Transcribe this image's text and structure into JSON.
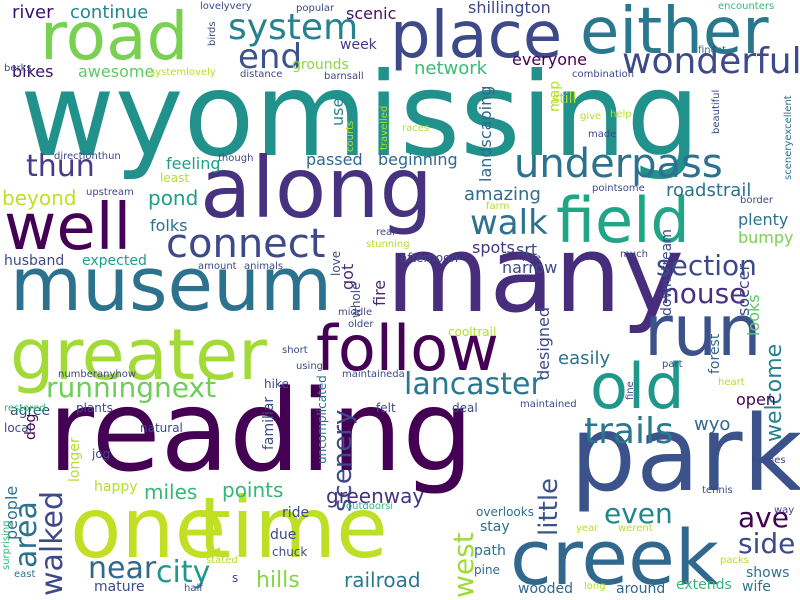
{
  "colors": {
    "background": "#ffffff",
    "palette": [
      "#440154",
      "#482878",
      "#3e4989",
      "#31688e",
      "#26828e",
      "#1f9e89",
      "#35b779",
      "#6ece58",
      "#b5de2b",
      "#fde725"
    ]
  },
  "words": [
    {
      "text": "wyomissing",
      "color": "#21918c"
    },
    {
      "text": "reading",
      "color": "#440154"
    },
    {
      "text": "park",
      "color": "#3b528b"
    },
    {
      "text": "many",
      "color": "#472d7b"
    },
    {
      "text": "museum",
      "color": "#2c728e"
    },
    {
      "text": "along",
      "color": "#46327e"
    },
    {
      "text": "time",
      "color": "#bddf26"
    },
    {
      "text": "one",
      "color": "#c2df23"
    },
    {
      "text": "creek",
      "color": "#31688e"
    },
    {
      "text": "greater",
      "color": "#a2da37"
    },
    {
      "text": "follow",
      "color": "#440154"
    },
    {
      "text": "road",
      "color": "#7ad151"
    },
    {
      "text": "place",
      "color": "#3e4989"
    },
    {
      "text": "either",
      "color": "#2a788e"
    },
    {
      "text": "well",
      "color": "#440154"
    },
    {
      "text": "field",
      "color": "#21a685"
    },
    {
      "text": "run",
      "color": "#3b528b"
    },
    {
      "text": "old",
      "color": "#1f988b"
    },
    {
      "text": "connect",
      "color": "#3e4989"
    },
    {
      "text": "underpass",
      "color": "#2c728e"
    },
    {
      "text": "wonderful",
      "color": "#3e4989"
    },
    {
      "text": "system",
      "color": "#26828e"
    },
    {
      "text": "section",
      "color": "#3e4989"
    },
    {
      "text": "house",
      "color": "#46337f"
    },
    {
      "text": "lancaster",
      "color": "#2a788e"
    },
    {
      "text": "runningnext",
      "color": "#6ece58"
    },
    {
      "text": "trails",
      "color": "#2a788e"
    },
    {
      "text": "walk",
      "color": "#2c728e"
    },
    {
      "text": "end",
      "color": "#3b528b"
    },
    {
      "text": "thun",
      "color": "#433e85"
    },
    {
      "text": "near",
      "color": "#31688e"
    },
    {
      "text": "city",
      "color": "#1f988b"
    },
    {
      "text": "ave",
      "color": "#440154"
    },
    {
      "text": "even",
      "color": "#25858e"
    },
    {
      "text": "side",
      "color": "#3e4989"
    },
    {
      "text": "walked",
      "color": "#3e4989"
    },
    {
      "text": "area",
      "color": "#2c728e"
    },
    {
      "text": "west",
      "color": "#a0da39"
    },
    {
      "text": "little",
      "color": "#3b528b"
    },
    {
      "text": "welcome",
      "color": "#26828e"
    },
    {
      "text": "scenery",
      "color": "#3e4989"
    },
    {
      "text": "greenway",
      "color": "#46327e"
    },
    {
      "text": "points",
      "color": "#35b779"
    },
    {
      "text": "miles",
      "color": "#35b779"
    },
    {
      "text": "hills",
      "color": "#86d549"
    },
    {
      "text": "railroad",
      "color": "#2a788e"
    },
    {
      "text": "network",
      "color": "#3aba76"
    },
    {
      "text": "river",
      "color": "#3b0f70"
    },
    {
      "text": "continue",
      "color": "#25858e"
    },
    {
      "text": "shillington",
      "color": "#3e4989"
    },
    {
      "text": "scenic",
      "color": "#471063"
    },
    {
      "text": "grounds",
      "color": "#8bd646"
    },
    {
      "text": "week",
      "color": "#443983"
    },
    {
      "text": "everyone",
      "color": "#440154"
    },
    {
      "text": "pond",
      "color": "#1f9e89"
    },
    {
      "text": "beyond",
      "color": "#c2df23"
    },
    {
      "text": "amazing",
      "color": "#2e6e8e"
    },
    {
      "text": "roadstrail",
      "color": "#2c728e"
    },
    {
      "text": "plenty",
      "color": "#2c728e"
    },
    {
      "text": "bumpy",
      "color": "#7ad151"
    },
    {
      "text": "easily",
      "color": "#2c728e"
    },
    {
      "text": "wyo",
      "color": "#31688e"
    },
    {
      "text": "open",
      "color": "#440154"
    },
    {
      "text": "spots",
      "color": "#443983"
    },
    {
      "text": "srt",
      "color": "#3e4989"
    },
    {
      "text": "narrow",
      "color": "#3e4989"
    },
    {
      "text": "passed",
      "color": "#31688e"
    },
    {
      "text": "beginning",
      "color": "#31688e"
    },
    {
      "text": "awesome",
      "color": "#5ec962"
    },
    {
      "text": "bikes",
      "color": "#3b0f70"
    },
    {
      "text": "expected",
      "color": "#1f9e89"
    },
    {
      "text": "husband",
      "color": "#3e4989"
    },
    {
      "text": "feeling",
      "color": "#1f9e89"
    },
    {
      "text": "least",
      "color": "#b5de2b"
    },
    {
      "text": "folks",
      "color": "#2c728e"
    },
    {
      "text": "still",
      "color": "#b5de2b"
    },
    {
      "text": "map",
      "color": "#b5de2b"
    },
    {
      "text": "landscaping",
      "color": "#31688e"
    },
    {
      "text": "use",
      "color": "#25858e"
    },
    {
      "text": "fire",
      "color": "#482878"
    },
    {
      "text": "got",
      "color": "#482878"
    },
    {
      "text": "love",
      "color": "#3e4989"
    },
    {
      "text": "whole",
      "color": "#3e4989"
    },
    {
      "text": "designed",
      "color": "#3e4989"
    },
    {
      "text": "soccer",
      "color": "#3e4989"
    },
    {
      "text": "looks",
      "color": "#5ec962"
    },
    {
      "text": "downstream",
      "color": "#3e4989"
    },
    {
      "text": "forest",
      "color": "#31688e"
    },
    {
      "text": "agree",
      "color": "#3e4989"
    },
    {
      "text": "local",
      "color": "#3e4989"
    },
    {
      "text": "people",
      "color": "#2c728e"
    },
    {
      "text": "dog",
      "color": "#440154"
    },
    {
      "text": "longer",
      "color": "#b5de2b"
    },
    {
      "text": "happy",
      "color": "#b5de2b"
    },
    {
      "text": "familiar",
      "color": "#3e4989"
    },
    {
      "text": "ride",
      "color": "#3e4989"
    },
    {
      "text": "due",
      "color": "#3e4989"
    },
    {
      "text": "chuck",
      "color": "#3e4989"
    },
    {
      "text": "hike",
      "color": "#3e4989"
    },
    {
      "text": "natural",
      "color": "#3e4989"
    },
    {
      "text": "plants",
      "color": "#3e4989"
    },
    {
      "text": "jog",
      "color": "#3e4989"
    },
    {
      "text": "uncomplicated",
      "color": "#2c728e"
    },
    {
      "text": "felt",
      "color": "#3e4989"
    },
    {
      "text": "deal",
      "color": "#3e4989"
    },
    {
      "text": "maintained",
      "color": "#3e4989"
    },
    {
      "text": "path",
      "color": "#2c728e"
    },
    {
      "text": "stay",
      "color": "#2c728e"
    },
    {
      "text": "overlooks",
      "color": "#2c728e"
    },
    {
      "text": "pine",
      "color": "#31688e"
    },
    {
      "text": "wooded",
      "color": "#31688e"
    },
    {
      "text": "around",
      "color": "#31688e"
    },
    {
      "text": "extends",
      "color": "#35b779"
    },
    {
      "text": "shows",
      "color": "#2c728e"
    },
    {
      "text": "wife",
      "color": "#2c728e"
    },
    {
      "text": "mature",
      "color": "#3e4989"
    },
    {
      "text": "east",
      "color": "#2c728e"
    },
    {
      "text": "surprising",
      "color": "#35b779"
    },
    {
      "text": "s",
      "color": "#3e4989"
    },
    {
      "text": "help",
      "color": "#b5de2b"
    },
    {
      "text": "give",
      "color": "#b5de2b"
    },
    {
      "text": "made",
      "color": "#3e4989"
    },
    {
      "text": "races",
      "color": "#b5de2b"
    },
    {
      "text": "travelled",
      "color": "#b5de2b"
    },
    {
      "text": "courts",
      "color": "#b5de2b"
    },
    {
      "text": "barnsall",
      "color": "#3e4989"
    },
    {
      "text": "distance",
      "color": "#3e4989"
    },
    {
      "text": "systemlovely",
      "color": "#b5de2b"
    },
    {
      "text": "birds",
      "color": "#3e4989"
    },
    {
      "text": "lovelyvery",
      "color": "#3e4989"
    },
    {
      "text": "popular",
      "color": "#3e4989"
    },
    {
      "text": "encounters",
      "color": "#35b779"
    },
    {
      "text": "finest",
      "color": "#2c728e"
    },
    {
      "text": "beautiful",
      "color": "#3e4989"
    },
    {
      "text": "sceneryexcellent",
      "color": "#2c728e"
    },
    {
      "text": "combination",
      "color": "#3e4989"
    },
    {
      "text": "berks",
      "color": "#3e4989"
    },
    {
      "text": "directionthun",
      "color": "#3e4989"
    },
    {
      "text": "though",
      "color": "#3e4989"
    },
    {
      "text": "upstream",
      "color": "#3e4989"
    },
    {
      "text": "pointsome",
      "color": "#3e4989"
    },
    {
      "text": "border",
      "color": "#3e4989"
    },
    {
      "text": "farm",
      "color": "#b5de2b"
    },
    {
      "text": "real",
      "color": "#3e4989"
    },
    {
      "text": "stunning",
      "color": "#b5de2b"
    },
    {
      "text": "afternoon",
      "color": "#3e4989"
    },
    {
      "text": "late",
      "color": "#3e4989"
    },
    {
      "text": "much",
      "color": "#3e4989"
    },
    {
      "text": "amount",
      "color": "#3e4989"
    },
    {
      "text": "animals",
      "color": "#3e4989"
    },
    {
      "text": "middle",
      "color": "#3e4989"
    },
    {
      "text": "older",
      "color": "#3e4989"
    },
    {
      "text": "cooltrail",
      "color": "#b5de2b"
    },
    {
      "text": "short",
      "color": "#3e4989"
    },
    {
      "text": "using",
      "color": "#3e4989"
    },
    {
      "text": "maintaineda",
      "color": "#3e4989"
    },
    {
      "text": "numberanyhow",
      "color": "#3e4989"
    },
    {
      "text": "restored",
      "color": "#35b779"
    },
    {
      "text": "part",
      "color": "#3e4989"
    },
    {
      "text": "heart",
      "color": "#b5de2b"
    },
    {
      "text": "fine",
      "color": "#3e4989"
    },
    {
      "text": "homes",
      "color": "#3e4989"
    },
    {
      "text": "tennis",
      "color": "#3e4989"
    },
    {
      "text": "way",
      "color": "#3e4989"
    },
    {
      "text": "outdoorsi",
      "color": "#35b779"
    },
    {
      "text": "half",
      "color": "#3e4989"
    },
    {
      "text": "year",
      "color": "#b5de2b"
    },
    {
      "text": "werent",
      "color": "#b5de2b"
    },
    {
      "text": "packs",
      "color": "#b5de2b"
    },
    {
      "text": "stated",
      "color": "#b5de2b"
    },
    {
      "text": "long",
      "color": "#b5de2b"
    }
  ]
}
